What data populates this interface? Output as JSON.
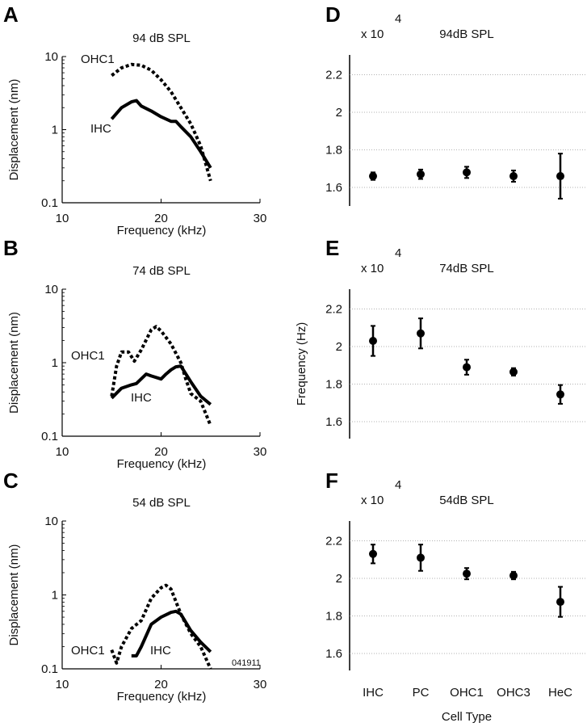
{
  "chart_data": [
    {
      "type": "line",
      "panel": "A",
      "title": "94 dB SPL",
      "xlabel": "Frequency (kHz)",
      "ylabel": "Displacement (nm)",
      "xlim": [
        10,
        30
      ],
      "ylim": [
        0.1,
        10
      ],
      "yscale": "log",
      "xticks": [
        "10",
        "20",
        "30"
      ],
      "yticks": [
        "0.1",
        "1",
        "10"
      ],
      "series": [
        {
          "name": "OHC1",
          "style": "dashed",
          "x": [
            15,
            16,
            17,
            18,
            19,
            20,
            21,
            22,
            23,
            24,
            25
          ],
          "y": [
            5.5,
            7,
            7.8,
            7.6,
            6.5,
            4.8,
            3.3,
            2.0,
            1.2,
            0.6,
            0.2
          ]
        },
        {
          "name": "IHC",
          "style": "solid",
          "x": [
            15,
            16,
            17,
            17.5,
            18,
            19,
            20,
            21,
            21.5,
            22,
            23,
            24,
            25
          ],
          "y": [
            1.4,
            2.0,
            2.4,
            2.5,
            2.1,
            1.8,
            1.5,
            1.3,
            1.3,
            1.1,
            0.8,
            0.5,
            0.3
          ]
        }
      ]
    },
    {
      "type": "line",
      "panel": "B",
      "title": "74 dB SPL",
      "xlabel": "Frequency (kHz)",
      "ylabel": "Displacement (nm)",
      "xlim": [
        10,
        30
      ],
      "ylim": [
        0.1,
        10
      ],
      "yscale": "log",
      "xticks": [
        "10",
        "20",
        "30"
      ],
      "yticks": [
        "0.1",
        "1",
        "10"
      ],
      "series": [
        {
          "name": "OHC1",
          "style": "dashed",
          "x": [
            15,
            15.5,
            16,
            16.7,
            17.3,
            18,
            19,
            19.5,
            20,
            21,
            22,
            22.5,
            23,
            24,
            25
          ],
          "y": [
            0.35,
            0.9,
            1.4,
            1.4,
            1.05,
            1.5,
            2.8,
            3.1,
            2.7,
            1.8,
            1.0,
            0.6,
            0.38,
            0.3,
            0.14
          ]
        },
        {
          "name": "IHC",
          "style": "solid",
          "x": [
            15,
            16,
            17,
            17.5,
            18.5,
            19,
            20,
            20.5,
            21,
            21.5,
            22,
            23,
            24,
            25
          ],
          "y": [
            0.33,
            0.45,
            0.5,
            0.52,
            0.7,
            0.66,
            0.6,
            0.7,
            0.8,
            0.88,
            0.9,
            0.55,
            0.35,
            0.27
          ]
        }
      ]
    },
    {
      "type": "line",
      "panel": "C",
      "title": "54 dB SPL",
      "xlabel": "Frequency (kHz)",
      "ylabel": "Displacement (nm)",
      "xlim": [
        10,
        30
      ],
      "ylim": [
        0.1,
        10
      ],
      "yscale": "log",
      "xticks": [
        "10",
        "20",
        "30"
      ],
      "yticks": [
        "0.1",
        "1",
        "10"
      ],
      "annotation": "041911",
      "series": [
        {
          "name": "OHC1",
          "style": "dashed",
          "x": [
            15,
            15.5,
            16,
            17,
            18,
            19,
            20,
            20.5,
            21,
            22,
            23,
            24,
            25
          ],
          "y": [
            0.18,
            0.12,
            0.2,
            0.35,
            0.45,
            0.9,
            1.25,
            1.35,
            1.2,
            0.55,
            0.3,
            0.2,
            0.1
          ]
        },
        {
          "name": "IHC",
          "style": "solid",
          "x": [
            17,
            17.5,
            18,
            19,
            20,
            21,
            21.5,
            22,
            23,
            24,
            25
          ],
          "y": [
            0.15,
            0.15,
            0.2,
            0.4,
            0.5,
            0.58,
            0.6,
            0.55,
            0.33,
            0.23,
            0.17
          ]
        }
      ]
    },
    {
      "type": "scatter",
      "panel": "D",
      "title": "94dB SPL",
      "multiplier": "x 10",
      "exponent": "4",
      "categories": [
        "IHC",
        "PC",
        "OHC1",
        "OHC3",
        "HeC"
      ],
      "values": [
        1.66,
        1.67,
        1.68,
        1.66,
        1.66
      ],
      "errors": [
        0.02,
        0.025,
        0.03,
        0.03,
        0.12
      ],
      "ylim": [
        1.5,
        2.3
      ],
      "yticks": [
        "1.6",
        "1.8",
        "2",
        "2.2"
      ],
      "grid": true
    },
    {
      "type": "scatter",
      "panel": "E",
      "title": "74dB SPL",
      "multiplier": "x 10",
      "exponent": "4",
      "ylabel": "Frequency (Hz)",
      "categories": [
        "IHC",
        "PC",
        "OHC1",
        "OHC3",
        "HeC"
      ],
      "values": [
        2.03,
        2.07,
        1.89,
        1.865,
        1.745
      ],
      "errors": [
        0.08,
        0.08,
        0.04,
        0.02,
        0.05
      ],
      "ylim": [
        1.5,
        2.3
      ],
      "yticks": [
        "1.6",
        "1.8",
        "2",
        "2.2"
      ],
      "grid": true
    },
    {
      "type": "scatter",
      "panel": "F",
      "title": "54dB SPL",
      "multiplier": "x 10",
      "exponent": "4",
      "xlabel": "Cell Type",
      "categories": [
        "IHC",
        "PC",
        "OHC1",
        "OHC3",
        "HeC"
      ],
      "values": [
        2.13,
        2.11,
        2.025,
        2.015,
        1.875
      ],
      "errors": [
        0.05,
        0.07,
        0.03,
        0.02,
        0.08
      ],
      "ylim": [
        1.5,
        2.3
      ],
      "yticks": [
        "1.6",
        "1.8",
        "2",
        "2.2"
      ],
      "grid": true
    }
  ],
  "colors": {
    "line": "#000000",
    "grid": "#999999"
  }
}
